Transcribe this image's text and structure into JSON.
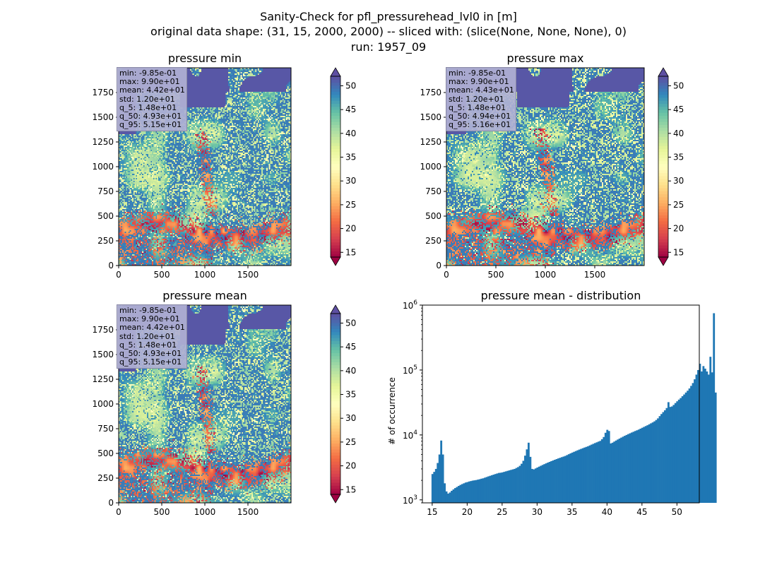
{
  "figure": {
    "title_lines": [
      "Sanity-Check for pfl_pressurehead_lvl0 in [m]",
      "original data shape: (31, 15, 2000, 2000) -- sliced with: (slice(None, None, None), 0)",
      "run: 1957_09"
    ]
  },
  "chart_data": [
    {
      "type": "heatmap",
      "title": "pressure min",
      "xlim": [
        0,
        2000
      ],
      "ylim": [
        0,
        2000
      ],
      "xticks": [
        0,
        500,
        1000,
        1500
      ],
      "yticks": [
        0,
        250,
        500,
        750,
        1000,
        1250,
        1500,
        1750
      ],
      "colormap": "Spectral",
      "colorbar": {
        "range": [
          14,
          52
        ],
        "ticks": [
          15,
          20,
          25,
          30,
          35,
          40,
          45,
          50
        ],
        "extend": "both"
      },
      "stats_lines": [
        "min: -9.85e-01",
        "max: 9.90e+01",
        "mean: 4.42e+01",
        "std: 1.20e+01",
        "q_5: 1.48e+01",
        "q_50: 4.93e+01",
        "q_95: 5.15e+01"
      ]
    },
    {
      "type": "heatmap",
      "title": "pressure max",
      "xlim": [
        0,
        2000
      ],
      "ylim": [
        0,
        2000
      ],
      "xticks": [
        0,
        500,
        1000,
        1500
      ],
      "yticks": [
        0,
        250,
        500,
        750,
        1000,
        1250,
        1500,
        1750
      ],
      "colormap": "Spectral",
      "colorbar": {
        "range": [
          14,
          52
        ],
        "ticks": [
          15,
          20,
          25,
          30,
          35,
          40,
          45,
          50
        ],
        "extend": "both"
      },
      "stats_lines": [
        "min: -9.85e-01",
        "max: 9.90e+01",
        "mean: 4.43e+01",
        "std: 1.20e+01",
        "q_5: 1.48e+01",
        "q_50: 4.94e+01",
        "q_95: 5.16e+01"
      ]
    },
    {
      "type": "heatmap",
      "title": "pressure mean",
      "xlim": [
        0,
        2000
      ],
      "ylim": [
        0,
        2000
      ],
      "xticks": [
        0,
        500,
        1000,
        1500
      ],
      "yticks": [
        0,
        250,
        500,
        750,
        1000,
        1250,
        1500,
        1750
      ],
      "colormap": "Spectral",
      "colorbar": {
        "range": [
          14,
          52
        ],
        "ticks": [
          15,
          20,
          25,
          30,
          35,
          40,
          45,
          50
        ],
        "extend": "both"
      },
      "stats_lines": [
        "min: -9.85e-01",
        "max: 9.90e+01",
        "mean: 4.42e+01",
        "std: 1.20e+01",
        "q_5: 1.48e+01",
        "q_50: 4.93e+01",
        "q_95: 5.15e+01"
      ]
    },
    {
      "type": "bar",
      "title": "pressure mean - distribution",
      "ylabel": "# of occurrence",
      "yscale": "log",
      "ylim": [
        900,
        1000000
      ],
      "xlim": [
        13.6,
        53.2
      ],
      "xticks": [
        15,
        20,
        25,
        30,
        35,
        40,
        45,
        50
      ],
      "yticks": [
        1000,
        10000,
        100000,
        1000000
      ],
      "ytick_labels": [
        {
          "base": "10",
          "exp": "3"
        },
        {
          "base": "10",
          "exp": "4"
        },
        {
          "base": "10",
          "exp": "5"
        },
        {
          "base": "10",
          "exp": "6"
        }
      ],
      "bar_color": "#1f77b4",
      "bin_start": 14.9,
      "bin_width": 0.25,
      "values": [
        2500,
        2700,
        3000,
        3700,
        5000,
        8200,
        5000,
        1800,
        1350,
        1250,
        1300,
        1380,
        1450,
        1520,
        1580,
        1640,
        1700,
        1750,
        1800,
        1850,
        1880,
        1920,
        1950,
        1980,
        2000,
        2020,
        2050,
        2080,
        2120,
        2150,
        2200,
        2250,
        2300,
        2350,
        2400,
        2450,
        2500,
        2550,
        2600,
        2620,
        2650,
        2700,
        2750,
        2800,
        2850,
        2900,
        2950,
        3000,
        3100,
        3200,
        3350,
        3600,
        4000,
        4800,
        6000,
        7600,
        4600,
        3000,
        2950,
        3050,
        3150,
        3250,
        3350,
        3450,
        3550,
        3650,
        3750,
        3850,
        3950,
        4050,
        4150,
        4250,
        4350,
        4450,
        4550,
        4650,
        4750,
        4900,
        5050,
        5200,
        5350,
        5500,
        5650,
        5800,
        5950,
        6100,
        6250,
        6400,
        6550,
        6700,
        6900,
        7100,
        7300,
        7500,
        7700,
        7900,
        8100,
        8600,
        9300,
        10800,
        12000,
        11500,
        7400,
        7600,
        7900,
        8200,
        8500,
        8800,
        9100,
        9400,
        9700,
        10000,
        10300,
        10600,
        10900,
        11200,
        11500,
        11800,
        12100,
        12500,
        12900,
        13300,
        13700,
        14100,
        14600,
        15100,
        15600,
        16200,
        17000,
        18000,
        19500,
        21000,
        22500,
        24000,
        26000,
        32000,
        27000,
        27500,
        29000,
        31000,
        33000,
        35000,
        37000,
        39500,
        42000,
        45000,
        48000,
        52000,
        57000,
        63000,
        72000,
        85000,
        100000,
        125000,
        95000,
        115000,
        105000,
        95000,
        85000,
        160000,
        92000,
        750000,
        45000
      ]
    }
  ]
}
